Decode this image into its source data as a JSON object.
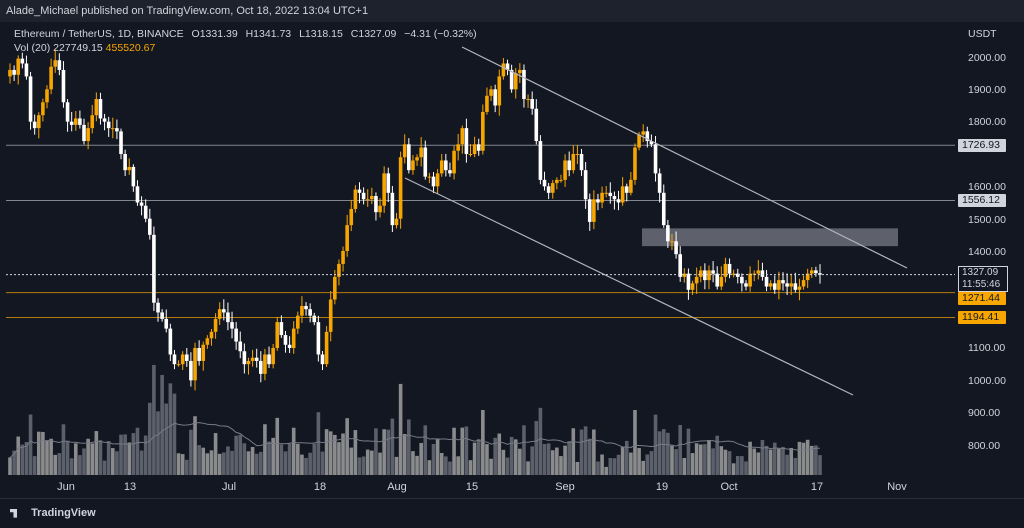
{
  "header": {
    "published": "Alade_Michael published on TradingView.com, Oct 18, 2022 13:04 UTC+1"
  },
  "symbol": {
    "name": "Ethereum / TetherUS, 1D, BINANCE",
    "open": "O1331.39",
    "high": "H1341.73",
    "low": "L1318.15",
    "close": "C1327.09",
    "change": "−4.31 (−0.32%)"
  },
  "volume": {
    "label": "Vol (20)",
    "value": "227749.15",
    "ma": "455520.67"
  },
  "axis": {
    "unit": "USDT",
    "price_ticks": [
      "2000.00",
      "1900.00",
      "1800.00",
      "1700.00",
      "1600.00",
      "1500.00",
      "1400.00",
      "1300.00",
      "1200.00",
      "1100.00",
      "1000.00",
      "900.00",
      "800.00"
    ],
    "time_ticks": [
      "Jun",
      "13",
      "Jul",
      "18",
      "Aug",
      "15",
      "Sep",
      "19",
      "Oct",
      "17",
      "Nov"
    ]
  },
  "tags": {
    "level_1726": "1726.93",
    "level_1556": "1556.12",
    "current_price": "1327.09",
    "countdown": "11:55:46",
    "level_1271": "1271.44",
    "level_1194": "1194.41"
  },
  "footer": {
    "brand": "TradingView"
  },
  "colors": {
    "up": "#f7a600",
    "down": "#ffffff",
    "background": "#131722",
    "channel": "#b2b5be"
  },
  "chart_data": {
    "type": "candlestick",
    "pair": "ETH/USDT",
    "interval": "1D",
    "ylim": [
      730,
      2080
    ],
    "grid": false,
    "horizontal_levels": [
      1726.93,
      1556.12,
      1271.44,
      1194.41
    ],
    "resistance_zone": [
      1415,
      1470
    ],
    "close_series": [
      1960,
      1945,
      1995,
      1980,
      1940,
      1800,
      1780,
      1820,
      1860,
      1900,
      1970,
      1990,
      1960,
      1860,
      1800,
      1790,
      1810,
      1790,
      1740,
      1780,
      1820,
      1870,
      1810,
      1800,
      1780,
      1780,
      1770,
      1700,
      1650,
      1660,
      1600,
      1550,
      1540,
      1500,
      1450,
      1240,
      1210,
      1190,
      1160,
      1080,
      1050,
      1050,
      1080,
      1060,
      1000,
      1100,
      1060,
      1110,
      1130,
      1150,
      1190,
      1220,
      1210,
      1180,
      1160,
      1120,
      1090,
      1050,
      1060,
      1070,
      1060,
      1020,
      1080,
      1050,
      1100,
      1180,
      1140,
      1110,
      1100,
      1160,
      1200,
      1230,
      1220,
      1200,
      1180,
      1080,
      1050,
      1150,
      1250,
      1320,
      1360,
      1400,
      1480,
      1530,
      1590,
      1580,
      1560,
      1560,
      1570,
      1520,
      1540,
      1640,
      1580,
      1480,
      1500,
      1690,
      1730,
      1650,
      1680,
      1690,
      1720,
      1630,
      1630,
      1600,
      1640,
      1680,
      1650,
      1640,
      1710,
      1730,
      1780,
      1700,
      1700,
      1730,
      1710,
      1830,
      1880,
      1900,
      1850,
      1940,
      1980,
      1960,
      1900,
      1950,
      1960,
      1870,
      1870,
      1840,
      1740,
      1620,
      1600,
      1580,
      1610,
      1620,
      1620,
      1680,
      1650,
      1700,
      1700,
      1650,
      1560,
      1490,
      1560,
      1550,
      1580,
      1580,
      1570,
      1560,
      1550,
      1600,
      1580,
      1620,
      1720,
      1760,
      1770,
      1740,
      1730,
      1640,
      1580,
      1480,
      1430,
      1430,
      1390,
      1320,
      1330,
      1280,
      1300,
      1320,
      1340,
      1310,
      1340,
      1330,
      1290,
      1320,
      1360,
      1330,
      1330,
      1320,
      1300,
      1290,
      1330,
      1330,
      1340,
      1320,
      1290,
      1300,
      1280,
      1310,
      1300,
      1290,
      1300,
      1280,
      1290,
      1310,
      1330,
      1340,
      1331.39,
      1327.09
    ]
  }
}
